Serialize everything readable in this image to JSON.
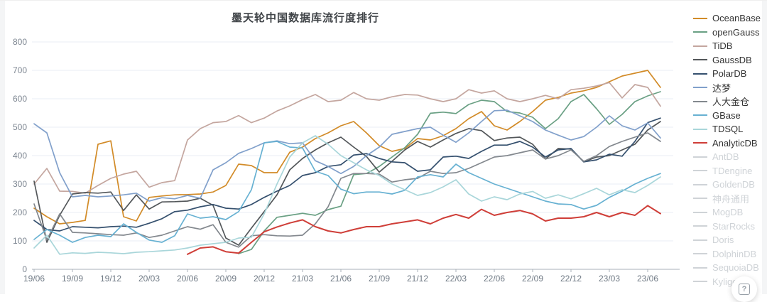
{
  "page_title": "墨天轮中国数据库流行度排行",
  "help_button": {
    "glyph": "?"
  },
  "chart_data": {
    "type": "line",
    "title": "墨天轮中国数据库流行度排行",
    "xlabel": "",
    "ylabel": "",
    "ylim": [
      0,
      800
    ],
    "y_ticks": [
      800,
      700,
      600,
      500,
      400,
      300,
      200,
      100,
      0
    ],
    "grid": "horizontal",
    "legend_position": "right",
    "x_unit": "year/month, monthly points",
    "x_tick_labels": [
      "19/06",
      "19/09",
      "19/12",
      "20/03",
      "20/06",
      "20/09",
      "20/12",
      "21/03",
      "21/06",
      "21/09",
      "21/12",
      "22/03",
      "22/06",
      "22/09",
      "22/12",
      "23/03",
      "23/06"
    ],
    "months_per_tick": 3,
    "series": [
      {
        "name": "OceanBase",
        "color": "#d28b28",
        "start": 0,
        "values": [
          215,
          185,
          160,
          165,
          172,
          440,
          452,
          185,
          170,
          253,
          258,
          262,
          263,
          265,
          272,
          295,
          370,
          365,
          340,
          340,
          412,
          430,
          460,
          480,
          505,
          520,
          480,
          435,
          415,
          425,
          460,
          455,
          470,
          495,
          530,
          555,
          505,
          490,
          520,
          555,
          595,
          605,
          620,
          628,
          640,
          660,
          680,
          690,
          700,
          640
        ]
      },
      {
        "name": "openGauss",
        "color": "#6aa084",
        "start": 16,
        "values": [
          55,
          70,
          135,
          183,
          190,
          197,
          190,
          210,
          222,
          333,
          337,
          362,
          395,
          428,
          475,
          549,
          553,
          548,
          580,
          595,
          590,
          555,
          550,
          535,
          495,
          530,
          590,
          615,
          565,
          510,
          545,
          590,
          610,
          625
        ]
      },
      {
        "name": "TiDB",
        "color": "#c4a69f",
        "start": 0,
        "values": [
          300,
          355,
          275,
          274,
          268,
          295,
          320,
          335,
          345,
          289,
          305,
          312,
          455,
          495,
          516,
          520,
          541,
          516,
          532,
          557,
          575,
          597,
          615,
          590,
          595,
          622,
          600,
          595,
          607,
          615,
          613,
          600,
          590,
          600,
          632,
          620,
          628,
          600,
          590,
          600,
          612,
          600,
          632,
          637,
          645,
          657,
          603,
          650,
          640,
          574
        ]
      },
      {
        "name": "GaussDB",
        "color": "#53575a",
        "start": 0,
        "values": [
          310,
          95,
          190,
          265,
          270,
          268,
          272,
          207,
          262,
          212,
          237,
          238,
          240,
          250,
          225,
          110,
          85,
          145,
          203,
          262,
          350,
          390,
          420,
          445,
          465,
          430,
          397,
          342,
          380,
          420,
          450,
          430,
          455,
          478,
          495,
          488,
          453,
          462,
          465,
          440,
          388,
          425,
          423,
          378,
          395,
          400,
          420,
          440,
          490,
          520
        ]
      },
      {
        "name": "PolarDB",
        "color": "#35506e",
        "start": 0,
        "values": [
          172,
          140,
          135,
          150,
          148,
          146,
          150,
          152,
          148,
          162,
          178,
          203,
          208,
          220,
          228,
          215,
          212,
          228,
          253,
          275,
          295,
          330,
          340,
          362,
          368,
          402,
          407,
          390,
          378,
          375,
          345,
          350,
          395,
          398,
          390,
          415,
          437,
          437,
          450,
          430,
          395,
          420,
          425,
          378,
          385,
          405,
          398,
          450,
          516,
          532
        ]
      },
      {
        "name": "达梦",
        "color": "#81a0cb",
        "start": 0,
        "values": [
          512,
          480,
          340,
          255,
          260,
          255,
          258,
          262,
          268,
          240,
          252,
          248,
          260,
          250,
          350,
          375,
          408,
          425,
          445,
          452,
          442,
          445,
          382,
          362,
          337,
          362,
          400,
          430,
          475,
          485,
          495,
          500,
          472,
          447,
          480,
          520,
          558,
          560,
          540,
          520,
          490,
          472,
          455,
          467,
          500,
          540,
          505,
          490,
          515,
          462
        ]
      },
      {
        "name": "人大金仓",
        "color": "#83888e",
        "start": 0,
        "values": [
          230,
          103,
          195,
          130,
          128,
          125,
          122,
          120,
          128,
          112,
          120,
          135,
          150,
          141,
          157,
          95,
          78,
          118,
          122,
          118,
          117,
          120,
          160,
          220,
          320,
          337,
          337,
          335,
          307,
          315,
          320,
          345,
          337,
          340,
          355,
          375,
          395,
          400,
          410,
          420,
          388,
          400,
          420,
          380,
          400,
          432,
          450,
          465,
          480,
          450
        ]
      },
      {
        "name": "GBase",
        "color": "#67b1d2",
        "start": 0,
        "values": [
          105,
          140,
          120,
          95,
          112,
          120,
          115,
          160,
          130,
          103,
          95,
          118,
          195,
          180,
          185,
          175,
          203,
          280,
          445,
          450,
          430,
          427,
          345,
          330,
          282,
          266,
          272,
          272,
          265,
          278,
          325,
          333,
          325,
          370,
          340,
          320,
          300,
          285,
          270,
          255,
          240,
          230,
          228,
          212,
          225,
          253,
          275,
          300,
          320,
          337
        ]
      },
      {
        "name": "TDSQL",
        "color": "#a9d6da",
        "start": 0,
        "values": [
          75,
          120,
          53,
          58,
          56,
          60,
          58,
          55,
          60,
          62,
          65,
          68,
          75,
          85,
          90,
          95,
          110,
          113,
          195,
          300,
          395,
          445,
          470,
          440,
          400,
          375,
          350,
          330,
          300,
          280,
          260,
          270,
          290,
          315,
          265,
          240,
          255,
          245,
          265,
          274,
          250,
          262,
          248,
          266,
          285,
          262,
          280,
          270,
          295,
          325
        ]
      },
      {
        "name": "AnalyticDB",
        "color": "#cf3e38",
        "start": 12,
        "values": [
          53,
          75,
          79,
          62,
          57,
          95,
          132,
          149,
          163,
          174,
          150,
          135,
          128,
          140,
          150,
          150,
          160,
          167,
          174,
          160,
          180,
          193,
          180,
          211,
          190,
          200,
          207,
          195,
          170,
          180,
          180,
          185,
          200,
          185,
          200,
          190,
          224,
          196
        ]
      }
    ],
    "inactive_series": [
      "AntDB",
      "TDengine",
      "GoldenDB",
      "神舟通用",
      "MogDB",
      "StarRocks",
      "Doris",
      "DolphinDB",
      "SequoiaDB",
      "Kyligence"
    ],
    "inactive_color": "#cfd3d7"
  }
}
